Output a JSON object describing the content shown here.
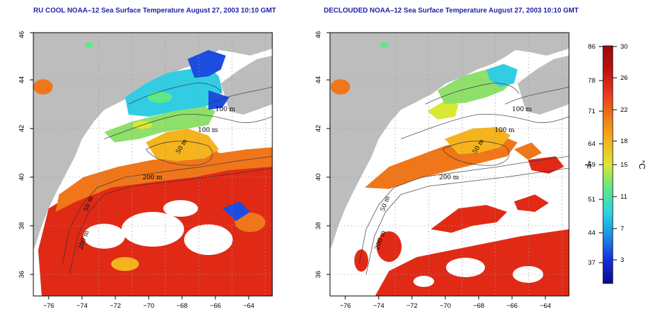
{
  "panels": [
    {
      "title": "RU COOL NOAA–12 Sea Surface Temperature August 27, 2003 10:10 GMT",
      "contour_labels": [
        "100 m",
        "100 m",
        "50 m",
        "200 m",
        "200 m",
        "50 m"
      ]
    },
    {
      "title": "DECLOUDED NOAA–12 Sea Surface Temperature August 27, 2003 10:10 GMT",
      "contour_labels": [
        "100 m",
        "100 m",
        "50 m",
        "200 m",
        "200 m",
        "50 m"
      ]
    }
  ],
  "axes": {
    "lon_ticks": [
      "−76",
      "−74",
      "−72",
      "−70",
      "−68",
      "−66",
      "−64"
    ],
    "lat_ticks": [
      "36",
      "38",
      "40",
      "42",
      "44",
      "46"
    ]
  },
  "colorbar": {
    "celsius_ticks": [
      "30",
      "26",
      "22",
      "18",
      "15",
      "11",
      "7",
      "3"
    ],
    "fahrenheit_ticks": [
      "86",
      "78",
      "71",
      "64",
      "59",
      "51",
      "44",
      "37"
    ],
    "celsius_unit": "°C",
    "fahrenheit_unit": "°F",
    "range_c": [
      0,
      30
    ],
    "colors": [
      "#0a0a8c",
      "#1530e0",
      "#1d8fe8",
      "#2cd6e0",
      "#5de88a",
      "#d8e833",
      "#f5b41e",
      "#f07a17",
      "#e8391a",
      "#c01010",
      "#9a0a0a"
    ]
  },
  "map_colors": {
    "land": "#bdbdbd",
    "ocean_clear": "#ffffff",
    "warm": "#e02a16",
    "orange": "#f0761a",
    "yellow": "#e8c52a",
    "green": "#6fd468",
    "cyan": "#31cde3",
    "blue": "#1c4de0"
  }
}
